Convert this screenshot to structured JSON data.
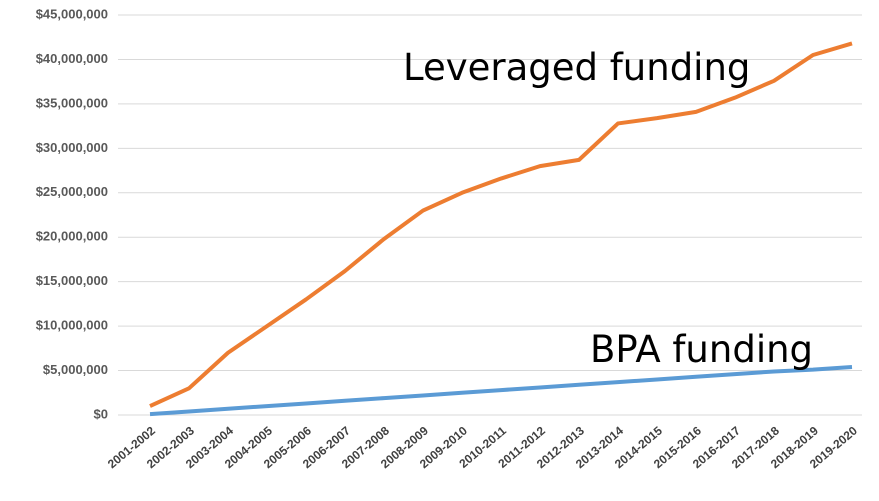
{
  "chart_data": {
    "type": "line",
    "categories": [
      "2001-2002",
      "2002-2003",
      "2003-2004",
      "2004-2005",
      "2005-2006",
      "2006-2007",
      "2007-2008",
      "2008-2009",
      "2009-2010",
      "2010-2011",
      "2011-2012",
      "2012-2013",
      "2013-2014",
      "2014-2015",
      "2015-2016",
      "2016-2017",
      "2017-2018",
      "2018-2019",
      "2019-2020"
    ],
    "series": [
      {
        "name": "Leveraged funding",
        "color": "#ED7D31",
        "values": [
          1000000,
          3000000,
          7000000,
          10000000,
          13000000,
          16200000,
          19800000,
          23000000,
          25000000,
          26600000,
          28000000,
          28700000,
          32800000,
          33400000,
          34100000,
          35700000,
          37600000,
          40500000,
          41800000
        ]
      },
      {
        "name": "BPA funding",
        "color": "#5B9BD5",
        "values": [
          100000,
          400000,
          700000,
          1000000,
          1300000,
          1600000,
          1900000,
          2200000,
          2500000,
          2800000,
          3100000,
          3400000,
          3700000,
          4000000,
          4300000,
          4600000,
          4900000,
          5100000,
          5400000
        ]
      }
    ],
    "ylim": [
      0,
      45000000
    ],
    "yticks": [
      {
        "value": 0,
        "label": "$0"
      },
      {
        "value": 5000000,
        "label": "$5,000,000"
      },
      {
        "value": 10000000,
        "label": "$10,000,000"
      },
      {
        "value": 15000000,
        "label": "$15,000,000"
      },
      {
        "value": 20000000,
        "label": "$20,000,000"
      },
      {
        "value": 25000000,
        "label": "$25,000,000"
      },
      {
        "value": 30000000,
        "label": "$30,000,000"
      },
      {
        "value": 35000000,
        "label": "$35,000,000"
      },
      {
        "value": 40000000,
        "label": "$40,000,000"
      },
      {
        "value": 45000000,
        "label": "$45,000,000"
      }
    ],
    "grid": true
  }
}
